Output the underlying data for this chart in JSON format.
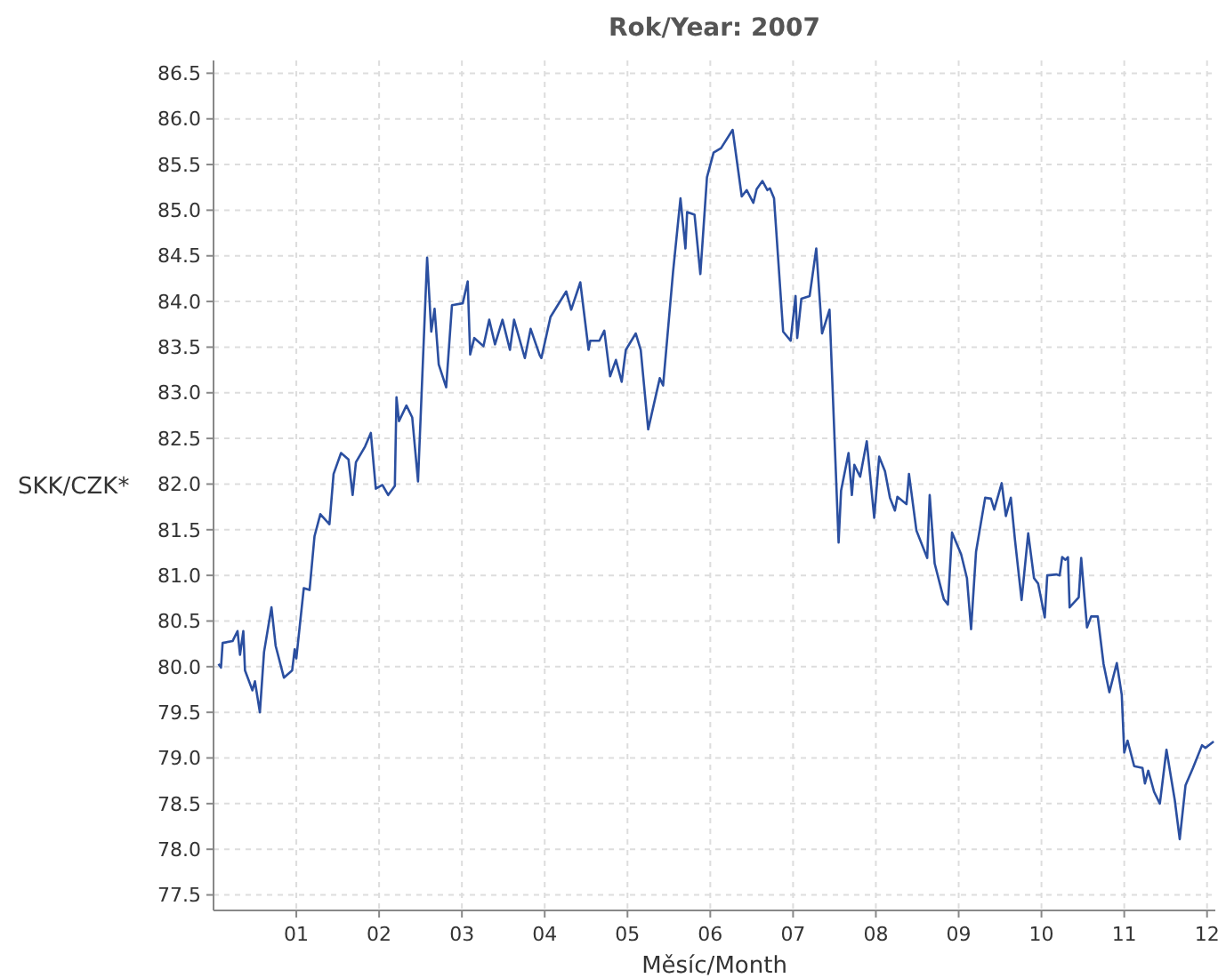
{
  "chart_data": {
    "type": "line",
    "title": "Rok/Year: 2007",
    "xlabel": "Měsíc/Month",
    "ylabel": "SKK/CZK*",
    "xlim": [
      0,
      12.1
    ],
    "xticks": [
      {
        "value": 1,
        "label": "01"
      },
      {
        "value": 2,
        "label": "02"
      },
      {
        "value": 3,
        "label": "03"
      },
      {
        "value": 4,
        "label": "04"
      },
      {
        "value": 5,
        "label": "05"
      },
      {
        "value": 6,
        "label": "06"
      },
      {
        "value": 7,
        "label": "07"
      },
      {
        "value": 8,
        "label": "08"
      },
      {
        "value": 9,
        "label": "09"
      },
      {
        "value": 10,
        "label": "10"
      },
      {
        "value": 11,
        "label": "11"
      },
      {
        "value": 12,
        "label": "12"
      }
    ],
    "ylim": [
      77.33,
      86.64
    ],
    "yticks": [
      77.5,
      {
        "value": 78,
        "label": "78.0"
      },
      78.5,
      {
        "value": 79,
        "label": "79.0"
      },
      79.5,
      {
        "value": 80,
        "label": "80.0"
      },
      80.5,
      {
        "value": 81,
        "label": "81.0"
      },
      81.5,
      {
        "value": 82,
        "label": "82.0"
      },
      82.5,
      {
        "value": 83,
        "label": "83.0"
      },
      83.5,
      {
        "value": 84,
        "label": "84.0"
      },
      84.5,
      {
        "value": 85,
        "label": "85.0"
      },
      85.5,
      {
        "value": 86,
        "label": "86.0"
      },
      86.5
    ],
    "grid": true,
    "marker": "none",
    "line_style": "solid",
    "series": [
      {
        "color": "#2b4fa0",
        "x": [
          0.06,
          0.09,
          0.11,
          0.23,
          0.29,
          0.32,
          0.36,
          0.38,
          0.47,
          0.5,
          0.56,
          0.61,
          0.7,
          0.75,
          0.85,
          0.95,
          0.98,
          1.0,
          1.09,
          1.16,
          1.22,
          1.29,
          1.4,
          1.45,
          1.54,
          1.63,
          1.68,
          1.72,
          1.83,
          1.9,
          1.96,
          2.04,
          2.11,
          2.19,
          2.21,
          2.24,
          2.33,
          2.4,
          2.47,
          2.58,
          2.63,
          2.67,
          2.72,
          2.81,
          2.88,
          3.01,
          3.07,
          3.1,
          3.15,
          3.26,
          3.33,
          3.4,
          3.49,
          3.58,
          3.63,
          3.76,
          3.83,
          3.94,
          3.96,
          4.07,
          4.26,
          4.32,
          4.43,
          4.53,
          4.55,
          4.66,
          4.72,
          4.79,
          4.86,
          4.93,
          4.98,
          5.1,
          5.16,
          5.25,
          5.39,
          5.43,
          5.55,
          5.64,
          5.7,
          5.72,
          5.81,
          5.88,
          5.96,
          6.04,
          6.13,
          6.27,
          6.38,
          6.44,
          6.52,
          6.56,
          6.63,
          6.69,
          6.72,
          6.77,
          6.88,
          6.97,
          7.03,
          7.05,
          7.1,
          7.2,
          7.28,
          7.35,
          7.44,
          7.55,
          7.58,
          7.67,
          7.71,
          7.74,
          7.81,
          7.89,
          7.98,
          8.04,
          8.11,
          8.17,
          8.23,
          8.26,
          8.37,
          8.4,
          8.49,
          8.62,
          8.65,
          8.71,
          8.82,
          8.87,
          8.92,
          9.03,
          9.1,
          9.15,
          9.21,
          9.32,
          9.39,
          9.43,
          9.52,
          9.57,
          9.63,
          9.68,
          9.76,
          9.84,
          9.91,
          9.96,
          10.04,
          10.07,
          10.18,
          10.22,
          10.25,
          10.29,
          10.32,
          10.34,
          10.45,
          10.48,
          10.55,
          10.6,
          10.68,
          10.75,
          10.82,
          10.91,
          10.97,
          11.0,
          11.04,
          11.12,
          11.22,
          11.25,
          11.29,
          11.36,
          11.43,
          11.51,
          11.61,
          11.67,
          11.74,
          11.83,
          11.94,
          11.98,
          12.08
        ],
        "values": [
          80.03,
          79.99,
          80.26,
          80.28,
          80.39,
          80.13,
          80.39,
          79.96,
          79.74,
          79.84,
          79.5,
          80.16,
          80.65,
          80.23,
          79.88,
          79.96,
          80.19,
          80.09,
          80.86,
          80.84,
          81.43,
          81.67,
          81.56,
          82.11,
          82.34,
          82.27,
          81.88,
          82.24,
          82.41,
          82.56,
          81.95,
          81.99,
          81.88,
          81.98,
          82.95,
          82.69,
          82.86,
          82.73,
          82.03,
          84.48,
          83.67,
          83.92,
          83.31,
          83.06,
          83.96,
          83.98,
          84.22,
          83.42,
          83.6,
          83.51,
          83.8,
          83.53,
          83.8,
          83.47,
          83.8,
          83.38,
          83.7,
          83.41,
          83.38,
          83.83,
          84.11,
          83.91,
          84.21,
          83.47,
          83.57,
          83.57,
          83.68,
          83.18,
          83.36,
          83.12,
          83.47,
          83.65,
          83.47,
          82.6,
          83.16,
          83.08,
          84.32,
          85.13,
          84.58,
          84.98,
          84.95,
          84.3,
          85.36,
          85.63,
          85.68,
          85.88,
          85.15,
          85.22,
          85.08,
          85.23,
          85.32,
          85.22,
          85.24,
          85.13,
          83.67,
          83.57,
          84.06,
          83.6,
          84.03,
          84.06,
          84.58,
          83.65,
          83.91,
          81.36,
          81.93,
          82.34,
          81.88,
          82.21,
          82.08,
          82.47,
          81.63,
          82.3,
          82.14,
          81.85,
          81.71,
          81.86,
          81.78,
          82.11,
          81.49,
          81.19,
          81.88,
          81.13,
          80.74,
          80.68,
          81.47,
          81.23,
          80.97,
          80.41,
          81.26,
          81.85,
          81.84,
          81.72,
          82.01,
          81.65,
          81.85,
          81.39,
          80.73,
          81.46,
          80.97,
          80.91,
          80.54,
          81.0,
          81.01,
          81.0,
          81.2,
          81.17,
          81.2,
          80.65,
          80.76,
          81.19,
          80.43,
          80.55,
          80.55,
          80.03,
          79.72,
          80.04,
          79.69,
          79.06,
          79.19,
          78.91,
          78.89,
          78.72,
          78.86,
          78.63,
          78.5,
          79.09,
          78.54,
          78.11,
          78.7,
          78.89,
          79.14,
          79.11,
          79.18
        ]
      }
    ]
  }
}
